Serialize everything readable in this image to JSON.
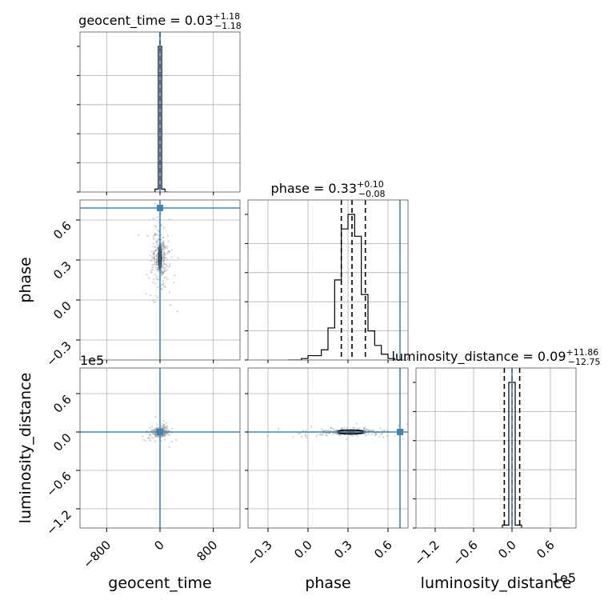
{
  "chart_data": {
    "type": "corner",
    "grid": true,
    "truth_color": "#4682b4",
    "hist_color": "#000000",
    "parameters": [
      {
        "id": "geocent_time",
        "label": "geocent_time",
        "range": [
          -1200,
          1200
        ],
        "ticks": [
          -800,
          0,
          800
        ],
        "tick_labels": [
          "−800",
          "0",
          "800"
        ],
        "truth": 0
      },
      {
        "id": "phase",
        "label": "phase",
        "range": [
          -0.45,
          0.75
        ],
        "ticks": [
          -0.3,
          0.0,
          0.3,
          0.6
        ],
        "tick_labels": [
          "−0.3",
          "0.0",
          "0.3",
          "0.6"
        ],
        "truth": 0.69
      },
      {
        "id": "luminosity_distance",
        "label": "luminosity_distance",
        "range": [
          -1.5,
          1.0
        ],
        "ticks": [
          -1.2,
          -0.6,
          0.0,
          0.6
        ],
        "tick_labels": [
          "−1.2",
          "−0.6",
          "0.0",
          "0.6"
        ],
        "truth": 0.0,
        "offset_label": "1e5"
      }
    ],
    "diag": [
      {
        "param": "geocent_time",
        "title": {
          "name": "geocent_time",
          "value": "0.03",
          "upper": "+1.18",
          "lower": "−1.18"
        },
        "bin_edges": [
          -75,
          -25,
          25,
          75,
          125
        ],
        "counts": [
          0.02,
          1.0,
          0.02,
          0.0
        ],
        "quantiles": [
          -1.18,
          0.03,
          1.18
        ]
      },
      {
        "param": "phase",
        "title": {
          "name": "phase",
          "value": "0.33",
          "upper": "+0.10",
          "lower": "−0.08"
        },
        "bin_edges": [
          -0.15,
          -0.1,
          -0.05,
          0.0,
          0.05,
          0.1,
          0.15,
          0.2,
          0.25,
          0.3,
          0.35,
          0.4,
          0.45,
          0.5,
          0.55,
          0.6,
          0.65,
          0.7
        ],
        "counts": [
          0.0,
          0.0,
          0.01,
          0.03,
          0.03,
          0.07,
          0.22,
          0.55,
          0.9,
          1.0,
          0.85,
          0.45,
          0.2,
          0.1,
          0.04,
          0.01,
          0.0
        ],
        "quantiles": [
          0.25,
          0.33,
          0.43
        ]
      },
      {
        "param": "luminosity_distance",
        "title": {
          "name": "luminosity_distance",
          "value": "0.09",
          "upper": "+11.86",
          "lower": "−12.75"
        },
        "bin_edges": [
          -0.15,
          -0.05,
          0.05,
          0.15
        ],
        "counts": [
          0.02,
          1.0,
          0.02
        ],
        "quantiles": [
          -0.12,
          0.0009,
          0.12
        ]
      }
    ],
    "scatter": [
      {
        "x": "geocent_time",
        "y": "phase",
        "center": [
          0,
          0.32
        ],
        "spread": [
          45,
          0.08
        ],
        "contour_half": [
          12,
          0.1
        ]
      },
      {
        "x": "geocent_time",
        "y": "luminosity_distance",
        "center": [
          0,
          0.0
        ],
        "spread": [
          40,
          0.03
        ],
        "contour_half": [
          10,
          0.015
        ]
      },
      {
        "x": "phase",
        "y": "luminosity_distance",
        "center": [
          0.32,
          0.0
        ],
        "spread": [
          0.09,
          0.02
        ],
        "contour_half": [
          0.1,
          0.03
        ]
      }
    ]
  }
}
